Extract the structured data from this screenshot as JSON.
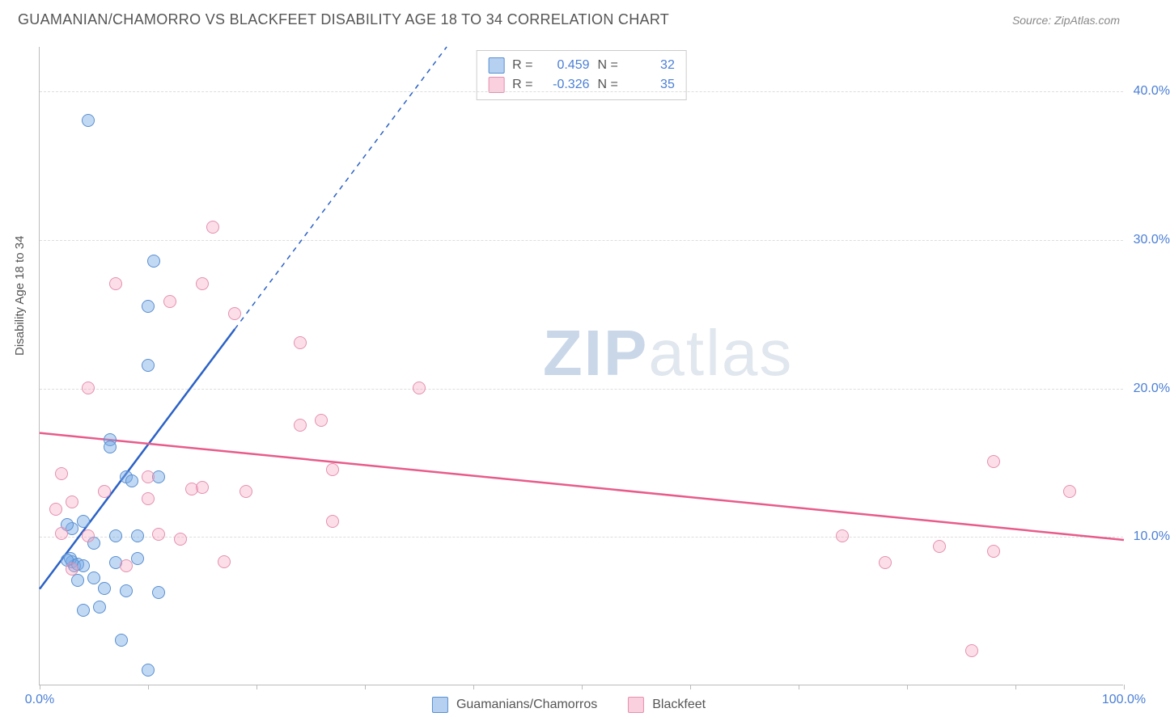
{
  "title": "GUAMANIAN/CHAMORRO VS BLACKFEET DISABILITY AGE 18 TO 34 CORRELATION CHART",
  "source_label": "Source: ZipAtlas.com",
  "y_axis_label": "Disability Age 18 to 34",
  "watermark_bold": "ZIP",
  "watermark_light": "atlas",
  "chart": {
    "type": "scatter",
    "xlim": [
      0,
      100
    ],
    "ylim": [
      0,
      43
    ],
    "x_ticks": [
      0,
      10,
      20,
      30,
      40,
      50,
      60,
      70,
      80,
      90,
      100
    ],
    "x_tick_labels": {
      "0": "0.0%",
      "100": "100.0%"
    },
    "y_ticks": [
      10,
      20,
      30,
      40
    ],
    "y_tick_labels": {
      "10": "10.0%",
      "20": "20.0%",
      "30": "30.0%",
      "40": "40.0%"
    },
    "grid_color": "#dddddd",
    "axis_color": "#bbbbbb",
    "label_color": "#4a7fd6",
    "background_color": "#ffffff",
    "series": [
      {
        "name": "Guamanians/Chamorros",
        "fill_color": "rgba(120,170,230,0.45)",
        "stroke_color": "#5a8fd0",
        "r_value": "0.459",
        "n_value": "32",
        "trend": {
          "x1": 0,
          "y1": 6.5,
          "x2": 18,
          "y2": 24,
          "color": "#2b62c6",
          "width": 2.5,
          "extend_dashed_to_y": 43
        },
        "points": [
          [
            4.5,
            38
          ],
          [
            10,
            25.5
          ],
          [
            10.5,
            28.5
          ],
          [
            10,
            21.5
          ],
          [
            6.5,
            16.5
          ],
          [
            6.5,
            16
          ],
          [
            8,
            14
          ],
          [
            3,
            8.3
          ],
          [
            3.2,
            8.0
          ],
          [
            2.8,
            8.5
          ],
          [
            3.5,
            8.1
          ],
          [
            2.5,
            8.4
          ],
          [
            4,
            8.0
          ],
          [
            5,
            9.5
          ],
          [
            7,
            10
          ],
          [
            9,
            10
          ],
          [
            6,
            6.5
          ],
          [
            8,
            6.3
          ],
          [
            11,
            6.2
          ],
          [
            7.5,
            3.0
          ],
          [
            10,
            1.0
          ],
          [
            4,
            5
          ],
          [
            5.5,
            5.2
          ],
          [
            3,
            10.5
          ],
          [
            2.5,
            10.8
          ],
          [
            4,
            11
          ],
          [
            8.5,
            13.7
          ],
          [
            5,
            7.2
          ],
          [
            9,
            8.5
          ],
          [
            7,
            8.2
          ],
          [
            11,
            14
          ],
          [
            3.5,
            7.0
          ]
        ]
      },
      {
        "name": "Blackfeet",
        "fill_color": "rgba(245,160,190,0.35)",
        "stroke_color": "#e590b0",
        "r_value": "-0.326",
        "n_value": "35",
        "trend": {
          "x1": 0,
          "y1": 17,
          "x2": 100,
          "y2": 9.8,
          "color": "#e85b8b",
          "width": 2.5
        },
        "points": [
          [
            16,
            30.8
          ],
          [
            7,
            27
          ],
          [
            12,
            25.8
          ],
          [
            15,
            27
          ],
          [
            18,
            25
          ],
          [
            10,
            14
          ],
          [
            4.5,
            20
          ],
          [
            24,
            23
          ],
          [
            24,
            17.5
          ],
          [
            14,
            13.2
          ],
          [
            15,
            13.3
          ],
          [
            10,
            12.5
          ],
          [
            13,
            9.8
          ],
          [
            17,
            8.3
          ],
          [
            27,
            14.5
          ],
          [
            26,
            17.8
          ],
          [
            35,
            20
          ],
          [
            27,
            11
          ],
          [
            88,
            15
          ],
          [
            95,
            13
          ],
          [
            83,
            9.3
          ],
          [
            78,
            8.2
          ],
          [
            88,
            9
          ],
          [
            86,
            2.3
          ],
          [
            74,
            10
          ],
          [
            2,
            14.2
          ],
          [
            1.5,
            11.8
          ],
          [
            3,
            12.3
          ],
          [
            2,
            10.2
          ],
          [
            4.5,
            10
          ],
          [
            6,
            13
          ],
          [
            3,
            7.8
          ],
          [
            8,
            8
          ],
          [
            11,
            10.1
          ],
          [
            19,
            13
          ]
        ]
      }
    ]
  },
  "legend_top": {
    "r_label": "R =",
    "n_label": "N ="
  },
  "legend_bottom_labels": [
    "Guamanians/Chamorros",
    "Blackfeet"
  ]
}
